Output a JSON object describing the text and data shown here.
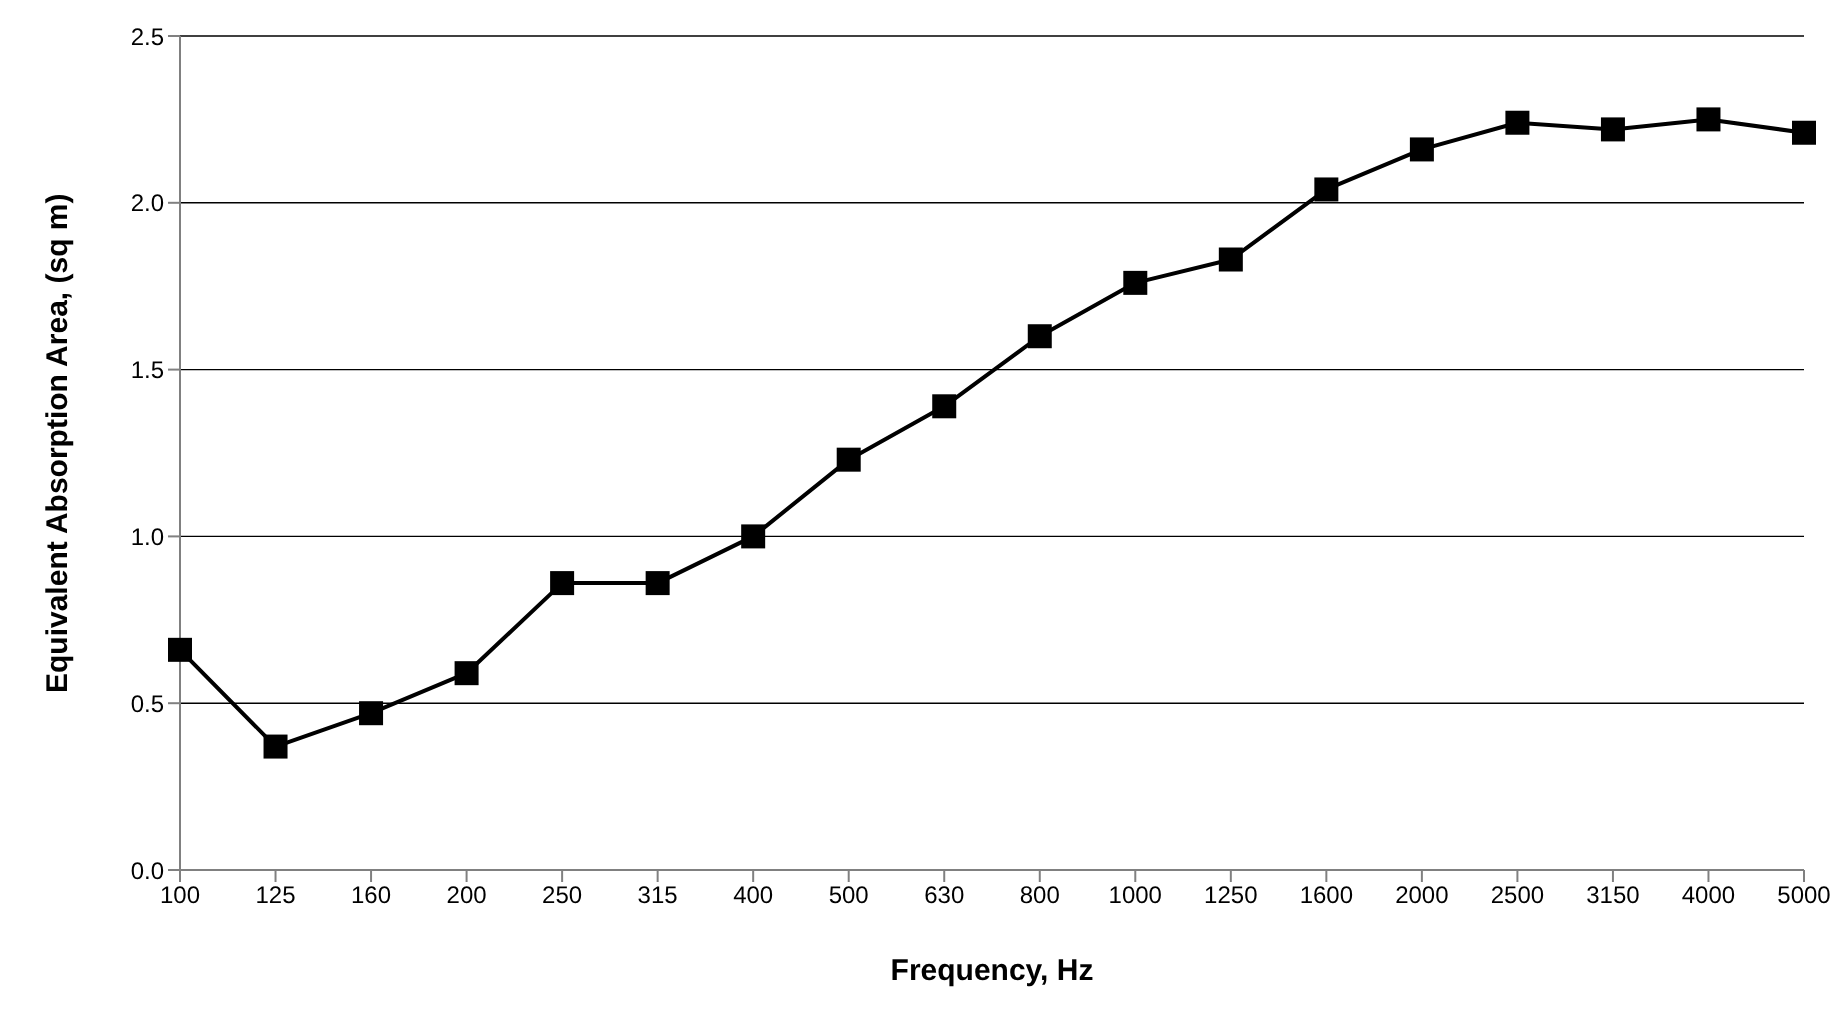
{
  "chart_data": {
    "type": "line",
    "xlabel": "Frequency, Hz",
    "ylabel": "Equivalent Absorption Area, (sq m)",
    "categories": [
      "100",
      "125",
      "160",
      "200",
      "250",
      "315",
      "400",
      "500",
      "630",
      "800",
      "1000",
      "1250",
      "1600",
      "2000",
      "2500",
      "3150",
      "4000",
      "5000"
    ],
    "series": [
      {
        "color": "#000000",
        "values": [
          0.66,
          0.37,
          0.47,
          0.59,
          0.86,
          0.86,
          1.0,
          1.23,
          1.39,
          1.6,
          1.76,
          1.83,
          2.04,
          2.16,
          2.24,
          2.22,
          2.25,
          2.21
        ]
      }
    ],
    "ylim": [
      0,
      2.5
    ],
    "yticks": [
      {
        "value": 0,
        "label": "0.0"
      },
      {
        "value": 0.5,
        "label": "0.5"
      },
      {
        "value": 1,
        "label": "1.0"
      },
      {
        "value": 1.5,
        "label": "1.5"
      },
      {
        "value": 2,
        "label": "2.0"
      },
      {
        "value": 2.5,
        "label": "2.5"
      }
    ],
    "grid": "y",
    "marker": "square",
    "line_style": "solid",
    "legend": false
  }
}
